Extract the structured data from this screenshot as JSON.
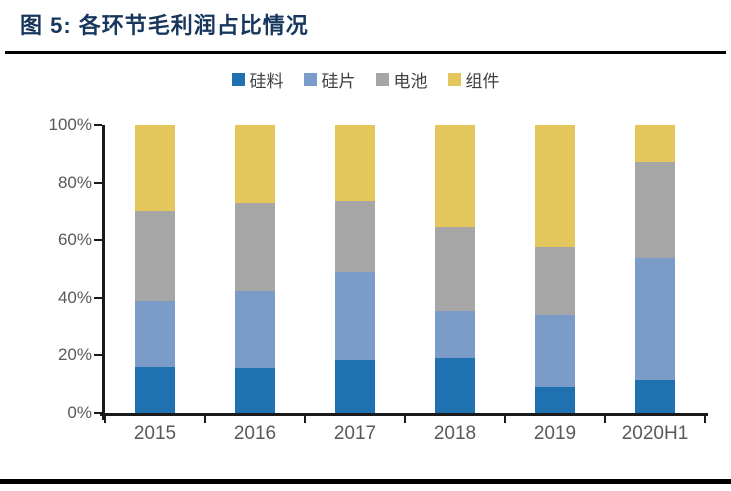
{
  "page": {
    "title": "图 5:  各环节毛利润占比情况"
  },
  "colors": {
    "background": "#FFFFFF",
    "title": "#17365D",
    "divider": "#000000",
    "axis": "#1A1A1A",
    "tick_label": "#595959",
    "legend_label": "#404040"
  },
  "chart_data": {
    "type": "bar",
    "stacked": true,
    "title": "图 5: 各环节毛利润占比情况",
    "categories": [
      "2015",
      "2016",
      "2017",
      "2018",
      "2019",
      "2020H1"
    ],
    "series": [
      {
        "name": "硅料",
        "key": "polysilicon",
        "color": "#2071AF",
        "values": [
          16,
          15.5,
          18.5,
          19,
          9,
          11.5
        ]
      },
      {
        "name": "硅片",
        "key": "wafer",
        "color": "#7B9CC8",
        "values": [
          23,
          27,
          30.5,
          16.5,
          25,
          42.5
        ]
      },
      {
        "name": "电池",
        "key": "cell",
        "color": "#A6A6A6",
        "values": [
          31,
          30.5,
          24.5,
          29,
          23.5,
          33
        ]
      },
      {
        "name": "组件",
        "key": "module",
        "color": "#E3C65C",
        "values": [
          30,
          27,
          26.5,
          35.5,
          42.5,
          13
        ]
      }
    ],
    "y_ticks": [
      "0%",
      "20%",
      "40%",
      "60%",
      "80%",
      "100%"
    ],
    "ylim": [
      0,
      100
    ],
    "unit": "percent",
    "legend_position": "top",
    "grid": false,
    "xlabel": "",
    "ylabel": ""
  }
}
